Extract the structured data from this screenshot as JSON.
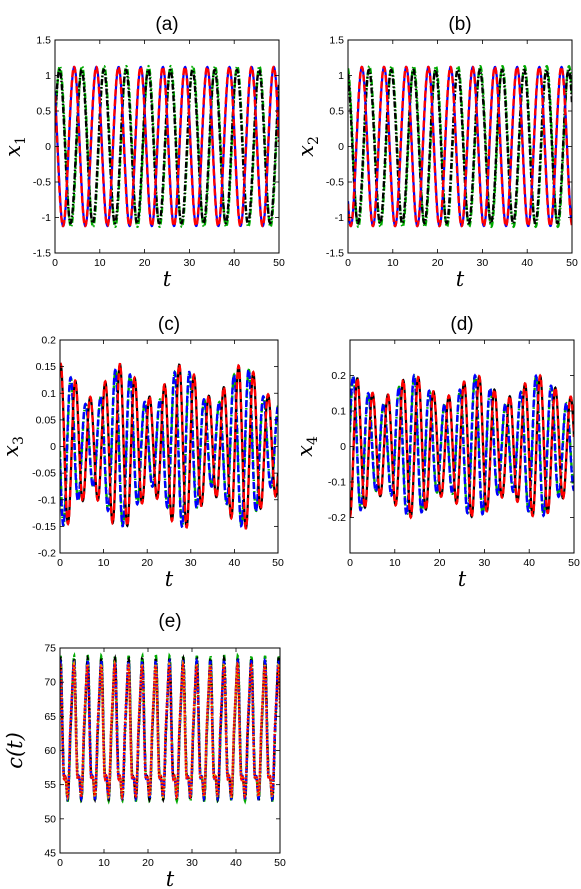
{
  "chart_data": [
    {
      "type": "line",
      "title": "(a)",
      "xlabel": "t",
      "ylabel": "x",
      "ylabel_sub": "1",
      "xlim": [
        0,
        50
      ],
      "ylim": [
        -1.5,
        1.5
      ],
      "xticks": [
        0,
        10,
        20,
        30,
        40,
        50
      ],
      "yticks": [
        -1.5,
        -1,
        -0.5,
        0,
        0.5,
        1,
        1.5
      ],
      "xtick_labels": [
        "0",
        "10",
        "20",
        "30",
        "40",
        "50"
      ],
      "ytick_labels": [
        "-1.5",
        "-1",
        "-0.5",
        "0",
        "0.5",
        "1",
        "1.5"
      ],
      "series": [
        {
          "color": "#00aa00",
          "style": "dashdot",
          "amp": 1.13,
          "period": 4.95,
          "phase": 0.2
        },
        {
          "color": "#000000",
          "style": "dashdot",
          "amp": 1.08,
          "period": 4.95,
          "phase": 0.3
        },
        {
          "color": "#0000ff",
          "style": "solid",
          "amp": 1.12,
          "period": 4.95,
          "phase": 2.4
        },
        {
          "color": "#ff0000",
          "style": "dashed",
          "amp": 1.12,
          "period": 4.95,
          "phase": 2.45
        }
      ]
    },
    {
      "type": "line",
      "title": "(b)",
      "xlabel": "t",
      "ylabel": "x",
      "ylabel_sub": "2",
      "xlim": [
        0,
        50
      ],
      "ylim": [
        -1.5,
        1.5
      ],
      "xticks": [
        0,
        10,
        20,
        30,
        40,
        50
      ],
      "yticks": [
        -1.5,
        -1,
        -0.5,
        0,
        0.5,
        1,
        1.5
      ],
      "xtick_labels": [
        "0",
        "10",
        "20",
        "30",
        "40",
        "50"
      ],
      "ytick_labels": [
        "-1.5",
        "-1",
        "-0.5",
        "0",
        "0.5",
        "1",
        "1.5"
      ],
      "series": [
        {
          "color": "#00aa00",
          "style": "dashdot",
          "amp": 1.13,
          "period": 4.95,
          "phase": 1.8
        },
        {
          "color": "#000000",
          "style": "dashdot",
          "amp": 1.08,
          "period": 4.95,
          "phase": 1.9
        },
        {
          "color": "#0000ff",
          "style": "solid",
          "amp": 1.12,
          "period": 4.95,
          "phase": 3.9
        },
        {
          "color": "#ff0000",
          "style": "dashed",
          "amp": 1.12,
          "period": 4.95,
          "phase": 3.95
        }
      ]
    },
    {
      "type": "line",
      "title": "(c)",
      "xlabel": "t",
      "ylabel": "x",
      "ylabel_sub": "3",
      "xlim": [
        0,
        50
      ],
      "ylim": [
        -0.2,
        0.2
      ],
      "xticks": [
        0,
        10,
        20,
        30,
        40,
        50
      ],
      "yticks": [
        -0.2,
        -0.15,
        -0.1,
        -0.05,
        0,
        0.05,
        0.1,
        0.15,
        0.2
      ],
      "xtick_labels": [
        "0",
        "10",
        "20",
        "30",
        "40",
        "50"
      ],
      "ytick_labels": [
        "-0.2",
        "-0.15",
        "-0.1",
        "-0.05",
        "0",
        "0.05",
        "0.1",
        "0.15",
        "0.2"
      ],
      "series": [
        {
          "color": "#00aa00",
          "style": "dashdot",
          "amp": 0.15,
          "period": 3.4,
          "phase": 3.2,
          "mod": 0.25,
          "modperiod": 14
        },
        {
          "color": "#0000ff",
          "style": "dashed",
          "amp": 0.15,
          "period": 3.4,
          "phase": 3.3,
          "mod": 0.25,
          "modperiod": 14
        },
        {
          "color": "#000000",
          "style": "solid",
          "amp": 0.155,
          "period": 3.4,
          "phase": 1.3,
          "mod": 0.2,
          "modperiod": 14
        },
        {
          "color": "#ff0000",
          "style": "dashed",
          "amp": 0.155,
          "period": 3.4,
          "phase": 1.3,
          "mod": 0.2,
          "modperiod": 14
        }
      ]
    },
    {
      "type": "line",
      "title": "(d)",
      "xlabel": "t",
      "ylabel": "x",
      "ylabel_sub": "4",
      "xlim": [
        0,
        50
      ],
      "ylim": [
        -0.3,
        0.3
      ],
      "xticks": [
        0,
        10,
        20,
        30,
        40,
        50
      ],
      "yticks": [
        -0.2,
        -0.1,
        0,
        0.1,
        0.2
      ],
      "xtick_labels": [
        "0",
        "10",
        "20",
        "30",
        "40",
        "50"
      ],
      "ytick_labels": [
        "-0.2",
        "-0.1",
        "0",
        "0.1",
        "0.2"
      ],
      "series": [
        {
          "color": "#00aa00",
          "style": "dashdot",
          "amp": 0.2,
          "period": 3.4,
          "phase": 0.2,
          "mod": 0.2,
          "modperiod": 14
        },
        {
          "color": "#0000ff",
          "style": "dashed",
          "amp": 0.2,
          "period": 3.4,
          "phase": 0.3,
          "mod": 0.2,
          "modperiod": 14
        },
        {
          "color": "#000000",
          "style": "solid",
          "amp": 0.2,
          "period": 3.4,
          "phase": 4.8,
          "mod": 0.15,
          "modperiod": 14
        },
        {
          "color": "#ff0000",
          "style": "dashed",
          "amp": 0.2,
          "period": 3.4,
          "phase": 4.8,
          "mod": 0.15,
          "modperiod": 14
        }
      ]
    },
    {
      "type": "line",
      "title": "(e)",
      "xlabel": "t",
      "ylabel": "c(t)",
      "ylabel_sub": "",
      "xlim": [
        0,
        50
      ],
      "ylim": [
        45,
        75
      ],
      "xticks": [
        0,
        10,
        20,
        30,
        40,
        50
      ],
      "yticks": [
        45,
        50,
        55,
        60,
        65,
        70,
        75
      ],
      "xtick_labels": [
        "0",
        "10",
        "20",
        "30",
        "40",
        "50"
      ],
      "ytick_labels": [
        "45",
        "50",
        "55",
        "60",
        "65",
        "70",
        "75"
      ],
      "series": [
        {
          "color": "#00aa00",
          "style": "dashdot",
          "base": 60.5,
          "amp": 12.8,
          "period": 3.1,
          "phase": 0.0
        },
        {
          "color": "#000000",
          "style": "dashdot",
          "base": 60.5,
          "amp": 12.5,
          "period": 3.1,
          "phase": 0.05
        },
        {
          "color": "#0000ff",
          "style": "dashed",
          "base": 60.5,
          "amp": 12.3,
          "period": 3.1,
          "phase": 0.1
        },
        {
          "color": "#ff8800",
          "style": "dotted",
          "base": 60.5,
          "amp": 12.0,
          "period": 3.1,
          "phase": 0.15
        },
        {
          "color": "#ff0000",
          "style": "dotted",
          "base": 60.5,
          "amp": 11.8,
          "period": 3.1,
          "phase": 0.2
        }
      ]
    }
  ]
}
